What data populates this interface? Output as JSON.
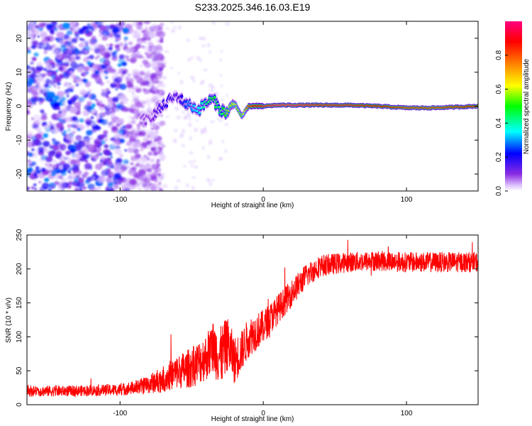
{
  "figure": {
    "title": "S233.2025.346.16.03.E19"
  },
  "chart_data": [
    {
      "type": "heatmap",
      "xlabel": "Height of straight line (km)",
      "ylabel": "Frequency (Hz)",
      "xlim": [
        -165,
        150
      ],
      "ylim": [
        -25,
        25
      ],
      "xticks": [
        -100,
        0,
        100
      ],
      "yticks": [
        -20,
        -10,
        0,
        10,
        20
      ],
      "colorbar": {
        "label": "Normalized spectral amplitude",
        "range": [
          0,
          1
        ],
        "ticks": [
          "0.0",
          "0.2",
          "0.4",
          "0.6",
          "0.8"
        ],
        "tick_values": [
          0,
          0.2,
          0.4,
          0.6,
          0.8
        ],
        "colors": [
          "#ffffff",
          "#e0c8ff",
          "#8a2be2",
          "#0000ff",
          "#00ffff",
          "#00ff00",
          "#ffff00",
          "#ff8000",
          "#ff0000",
          "#ff0080"
        ]
      },
      "ridge": {
        "x": [
          -80,
          -75,
          -70,
          -65,
          -60,
          -55,
          -50,
          -45,
          -40,
          -35,
          -30,
          -25,
          -20,
          -15,
          -10,
          -5,
          0,
          10,
          20,
          40,
          60,
          80,
          100,
          120,
          150
        ],
        "freq": [
          -4,
          -2,
          0,
          2,
          3,
          1,
          0,
          -1,
          1,
          2,
          -1,
          -2,
          1,
          -3,
          0,
          0,
          0,
          0.3,
          0.3,
          0.3,
          0.3,
          0,
          -0.5,
          -0.5,
          0
        ],
        "amplitude": [
          0.2,
          0.25,
          0.3,
          0.3,
          0.25,
          0.35,
          0.4,
          0.45,
          0.5,
          0.55,
          0.5,
          0.6,
          0.65,
          0.6,
          0.85,
          0.9,
          0.95,
          1.0,
          1.0,
          0.95,
          0.95,
          0.9,
          0.85,
          0.85,
          0.9
        ]
      },
      "noise": {
        "region_x": [
          -165,
          -80
        ],
        "freq_span": [
          -25,
          25
        ],
        "amplitude_range": [
          0.05,
          0.25
        ]
      }
    },
    {
      "type": "line",
      "color": "#ff0000",
      "xlabel": "Height of straight line (km)",
      "ylabel": "SNR (10 * v/v)",
      "xlim": [
        -165,
        150
      ],
      "ylim": [
        0,
        250
      ],
      "xticks": [
        -100,
        0,
        100
      ],
      "yticks": [
        0,
        50,
        100,
        150,
        200,
        250
      ],
      "trend": {
        "x": [
          -165,
          -140,
          -120,
          -100,
          -90,
          -80,
          -70,
          -60,
          -50,
          -40,
          -35,
          -30,
          -25,
          -20,
          -15,
          -10,
          0,
          10,
          20,
          30,
          40,
          60,
          80,
          100,
          120,
          150
        ],
        "snr": [
          20,
          20,
          21,
          22,
          25,
          30,
          38,
          48,
          55,
          70,
          85,
          70,
          90,
          65,
          80,
          100,
          115,
          140,
          165,
          190,
          205,
          210,
          212,
          210,
          210,
          210
        ],
        "noise_amplitude": [
          8,
          8,
          8,
          9,
          10,
          14,
          20,
          25,
          30,
          35,
          40,
          45,
          40,
          35,
          30,
          30,
          25,
          22,
          20,
          18,
          16,
          15,
          15,
          15,
          15,
          15
        ]
      }
    }
  ]
}
